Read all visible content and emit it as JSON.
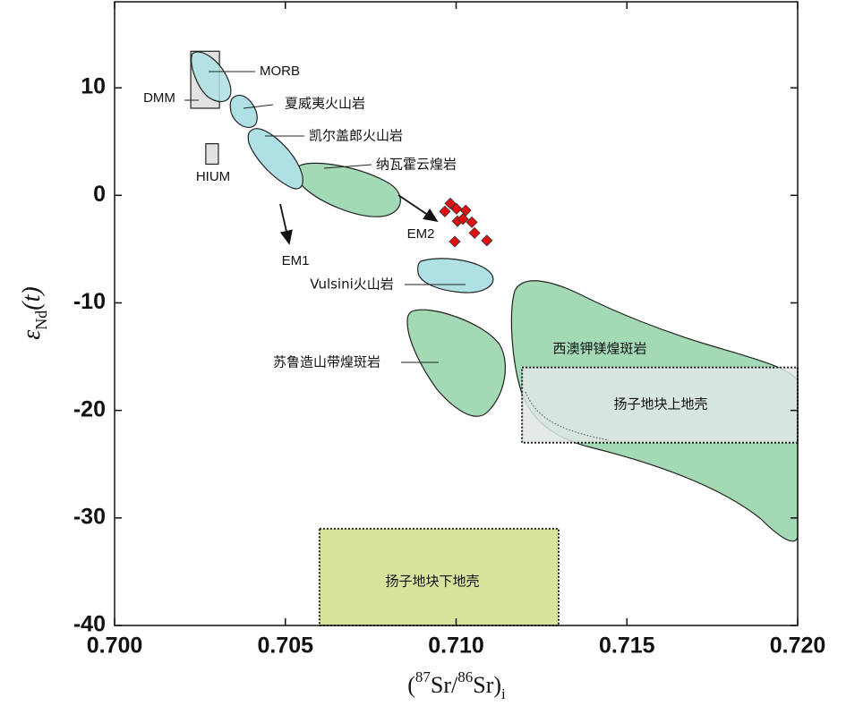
{
  "chart_data": {
    "type": "scatter",
    "x_label_parts": [
      "(",
      "87",
      "Sr/",
      "86",
      "Sr)",
      "i"
    ],
    "y_label_parts": [
      "ε",
      "Nd",
      "(t)"
    ],
    "xlim": [
      0.7,
      0.72
    ],
    "ylim": [
      -40,
      18
    ],
    "xticks": [
      {
        "value": 0.7,
        "label": "0.700"
      },
      {
        "value": 0.705,
        "label": "0.705"
      },
      {
        "value": 0.71,
        "label": "0.710"
      },
      {
        "value": 0.715,
        "label": "0.715"
      },
      {
        "value": 0.72,
        "label": "0.720"
      }
    ],
    "yticks": [
      10,
      0,
      -10,
      -20,
      -30,
      -40
    ],
    "series": [
      {
        "color": "#e01010",
        "x": [
          0.70983,
          0.70967,
          0.71001,
          0.71028,
          0.71004,
          0.7102,
          0.71046,
          0.70996,
          0.71054,
          0.7109
        ],
        "values": [
          -0.75,
          -1.5,
          -1.25,
          -1.4,
          -2.4,
          -2.2,
          -2.5,
          -4.3,
          -3.5,
          -4.2
        ]
      }
    ],
    "regions": [
      {
        "name": "DMM",
        "xlim": [
          0.70223,
          0.70307
        ],
        "ylim": [
          8.1,
          13.4
        ],
        "color": "#e2e2e2"
      },
      {
        "name": "HIUM",
        "xlim": [
          0.70267,
          0.70304
        ],
        "ylim": [
          2.9,
          4.8
        ],
        "color": "#e2e2e2"
      },
      {
        "name": "扬子地块上地壳",
        "xlim": [
          0.71193,
          0.72
        ],
        "ylim": [
          -23,
          -16
        ],
        "color": "#dfe6e5"
      },
      {
        "name": "扬子地块下地壳",
        "xlim": [
          0.706,
          0.713
        ],
        "ylim": [
          -40,
          -31
        ],
        "color": "#d8e49c"
      }
    ],
    "annotations": [
      "MORB",
      "夏威夷火山岩",
      "凯尔盖郎火山岩",
      "纳瓦霍云煌岩",
      "EM1",
      "EM2",
      "Vulsini火山岩",
      "苏鲁造山带煌斑岩",
      "西澳钾镁煌斑岩"
    ]
  }
}
